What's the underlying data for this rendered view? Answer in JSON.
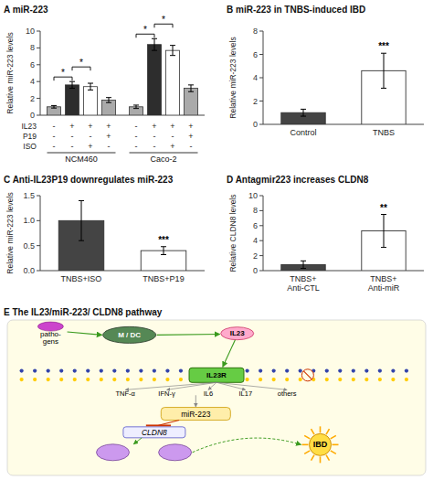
{
  "chart_data": [
    {
      "type": "bar",
      "title": "A miR-223",
      "y_label": "Relative miR-223 levels",
      "ylim": [
        0,
        10
      ],
      "yticks": [
        0,
        2,
        4,
        6,
        8,
        10
      ],
      "series": [
        {
          "name": "NCM460",
          "values": [
            1.0,
            3.6,
            3.4,
            1.8
          ],
          "errors": [
            0.15,
            0.4,
            0.4,
            0.3
          ],
          "colors": [
            "#aaaaaa",
            "#2d2d2d",
            "#ffffff",
            "#aaaaaa"
          ]
        },
        {
          "name": "Caco-2",
          "values": [
            1.0,
            8.4,
            7.7,
            3.2
          ],
          "errors": [
            0.2,
            0.7,
            0.6,
            0.4
          ],
          "colors": [
            "#aaaaaa",
            "#2d2d2d",
            "#ffffff",
            "#aaaaaa"
          ]
        }
      ],
      "conditions": [
        {
          "name": "IL23",
          "values": [
            "-",
            "+",
            "+",
            "+",
            "-",
            "+",
            "+",
            "+"
          ]
        },
        {
          "name": "P19",
          "values": [
            "-",
            "-",
            "-",
            "+",
            "-",
            "-",
            "-",
            "+"
          ]
        },
        {
          "name": "ISO",
          "values": [
            "-",
            "-",
            "+",
            "-",
            "-",
            "-",
            "+",
            "-"
          ]
        }
      ],
      "annotations": [
        {
          "text": "*",
          "series": 0,
          "from": 0,
          "to": 1
        },
        {
          "text": "*",
          "series": 0,
          "from": 1,
          "to": 2
        },
        {
          "text": "*",
          "series": 1,
          "from": 0,
          "to": 1
        },
        {
          "text": "*",
          "series": 1,
          "from": 1,
          "to": 2
        }
      ]
    },
    {
      "type": "bar",
      "title": "B miR-223 in TNBS-induced IBD",
      "y_label": "Relative miR-223 levels",
      "ylim": [
        0,
        8
      ],
      "yticks": [
        0,
        2,
        4,
        6,
        8
      ],
      "categories": [
        "Control",
        "TNBS"
      ],
      "values": [
        1.0,
        4.6
      ],
      "errors": [
        0.3,
        1.5
      ],
      "colors": [
        "#444444",
        "#ffffff"
      ],
      "annotations": [
        {
          "text": "***",
          "category": 1
        }
      ]
    },
    {
      "type": "bar",
      "title": "C Anti-IL23P19 downregulates miR-223",
      "y_label": "Relative miR-223 levels",
      "ylim": [
        0,
        1.5
      ],
      "yticks": [
        {
          "value": 0,
          "label": "0.0"
        },
        0.5,
        {
          "value": 1.0,
          "label": "1.0"
        },
        1.5
      ],
      "categories": [
        "TNBS+ISO",
        "TNBS+P19"
      ],
      "values": [
        1.0,
        0.4
      ],
      "errors": [
        0.4,
        0.08
      ],
      "colors": [
        "#444444",
        "#ffffff"
      ],
      "annotations": [
        {
          "text": "***",
          "category": 1
        }
      ]
    },
    {
      "type": "bar",
      "title": "D Antagmir223 increases CLDN8",
      "y_label": "Relative CLDN8 levels",
      "ylim": [
        0,
        10
      ],
      "yticks": [
        0,
        2,
        4,
        6,
        8,
        10
      ],
      "categories": [
        "TNBS+\nAnti-CTL",
        "TNBS+\nAnti-miR"
      ],
      "values": [
        0.8,
        5.3
      ],
      "errors": [
        0.5,
        2.2
      ],
      "colors": [
        "#444444",
        "#ffffff"
      ],
      "annotations": [
        {
          "text": "**",
          "category": 1
        }
      ]
    },
    {
      "type": "diagram",
      "title": "E The IL23/miR-223/ CLDN8 pathway",
      "annotations": [
        "patho-",
        "gens",
        "M / DC",
        "IL23",
        "IL23R",
        "TNF-α",
        "IFN-γ",
        "IL6",
        "IL17",
        "others",
        "miR-223",
        "CLDN8",
        "IBD"
      ]
    }
  ]
}
